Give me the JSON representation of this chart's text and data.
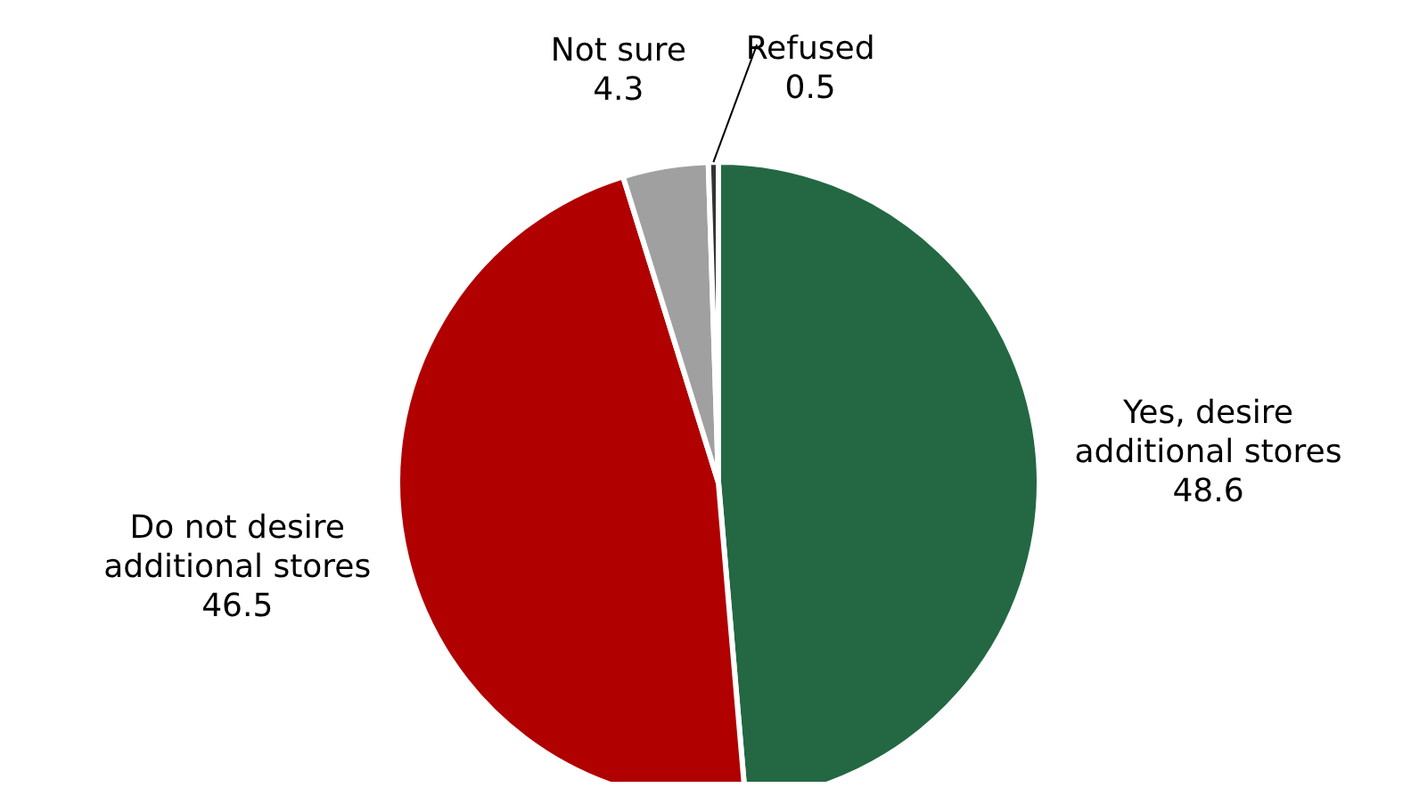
{
  "chart_data": {
    "type": "pie",
    "categories": [
      "Yes, desire additional stores",
      "Do not desire additional stores",
      "Not sure",
      "Refused"
    ],
    "values": [
      48.6,
      46.5,
      4.3,
      0.5
    ],
    "colors": [
      "#236843",
      "#b00000",
      "#a0a0a0",
      "#333333"
    ],
    "data_labels": true
  }
}
